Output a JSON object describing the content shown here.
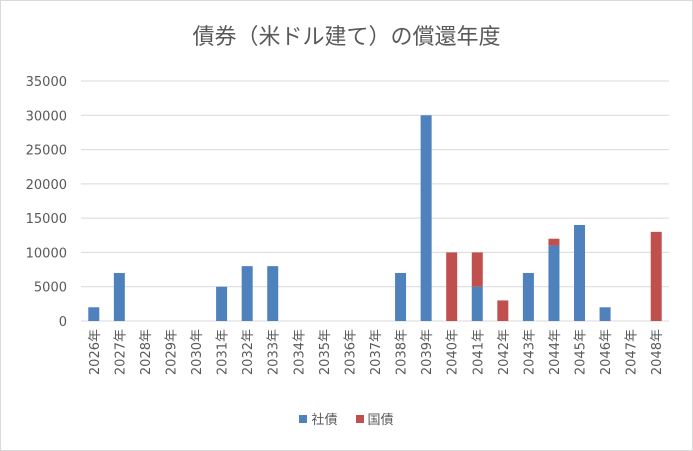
{
  "chart_data": {
    "type": "bar",
    "stacked": true,
    "title": "債券（米ドル建て）の償還年度",
    "xlabel": "",
    "ylabel": "",
    "ylim": [
      0,
      35000
    ],
    "yticks": [
      "0",
      "5000",
      "10000",
      "15000",
      "20000",
      "25000",
      "30000",
      "35000"
    ],
    "grid": true,
    "legend_position": "bottom",
    "categories": [
      "2026年",
      "2027年",
      "2028年",
      "2029年",
      "2030年",
      "2031年",
      "2032年",
      "2033年",
      "2034年",
      "2035年",
      "2036年",
      "2037年",
      "2038年",
      "2039年",
      "2040年",
      "2041年",
      "2042年",
      "2043年",
      "2044年",
      "2045年",
      "2046年",
      "2047年",
      "2048年"
    ],
    "series": [
      {
        "name": "社債",
        "color": "#4f81bd",
        "values": [
          2000,
          7000,
          0,
          0,
          0,
          5000,
          8000,
          8000,
          0,
          0,
          0,
          0,
          7000,
          30000,
          0,
          5000,
          0,
          7000,
          11000,
          14000,
          2000,
          0,
          0
        ]
      },
      {
        "name": "国債",
        "color": "#c0504d",
        "values": [
          0,
          0,
          0,
          0,
          0,
          0,
          0,
          0,
          0,
          0,
          0,
          0,
          0,
          0,
          10000,
          5000,
          3000,
          0,
          1000,
          0,
          0,
          0,
          13000
        ]
      }
    ]
  }
}
